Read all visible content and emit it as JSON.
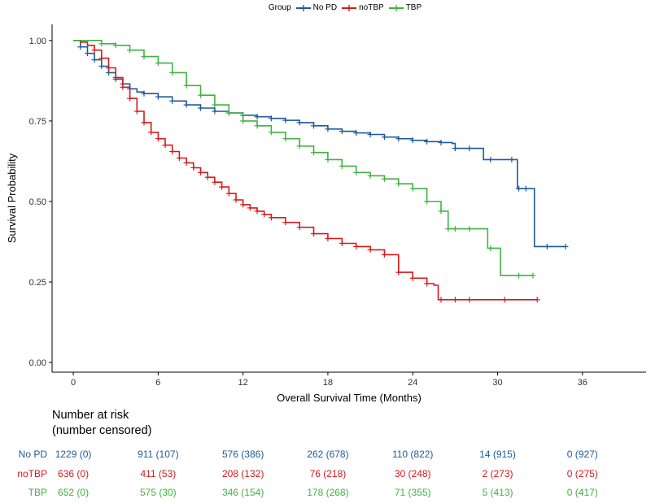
{
  "legend": {
    "title": "Group",
    "items": [
      {
        "label": "No PD",
        "color": "#1d5a9c"
      },
      {
        "label": "noTBP",
        "color": "#d7191c"
      },
      {
        "label": "TBP",
        "color": "#3fb33f"
      }
    ]
  },
  "risk_table": {
    "title_line1": "Number at risk",
    "title_line2": "(number censored)",
    "rows": [
      {
        "group": "No PD",
        "color": "#1d5a9c",
        "cells": [
          "1229 (0)",
          "911 (107)",
          "576 (386)",
          "262 (678)",
          "110 (822)",
          "14 (915)",
          "0 (927)"
        ]
      },
      {
        "group": "noTBP",
        "color": "#d7191c",
        "cells": [
          "636 (0)",
          "411 (53)",
          "208 (132)",
          "76 (218)",
          "30 (248)",
          "2 (273)",
          "0 (275)"
        ]
      },
      {
        "group": "TBP",
        "color": "#3fb33f",
        "cells": [
          "652 (0)",
          "575 (30)",
          "346 (154)",
          "178 (268)",
          "71 (355)",
          "5 (413)",
          "0 (417)"
        ]
      }
    ]
  },
  "chart_data": {
    "type": "line",
    "title": "",
    "xlabel": "Overall Survival Time (Months)",
    "ylabel": "Survival Probability",
    "xlim": [
      -1.5,
      40.5
    ],
    "ylim": [
      -0.03,
      1.05
    ],
    "xticks": [
      0,
      6,
      12,
      18,
      24,
      30,
      36
    ],
    "xtick_labels": [
      "0",
      "6",
      "12",
      "18",
      "24",
      "30",
      "36"
    ],
    "yticks": [
      0,
      0.25,
      0.5,
      0.75,
      1.0
    ],
    "ytick_labels": [
      "0.00",
      "0.25",
      "0.50",
      "0.75",
      "1.00"
    ],
    "grid": false,
    "series": [
      {
        "name": "No PD",
        "color": "#1d5a9c",
        "points": [
          [
            0,
            1.0
          ],
          [
            0.5,
            0.98
          ],
          [
            1,
            0.96
          ],
          [
            1.5,
            0.94
          ],
          [
            2,
            0.92
          ],
          [
            2.5,
            0.9
          ],
          [
            3,
            0.88
          ],
          [
            3.5,
            0.865
          ],
          [
            4,
            0.85
          ],
          [
            4.5,
            0.84
          ],
          [
            5,
            0.835
          ],
          [
            6,
            0.825
          ],
          [
            7,
            0.812
          ],
          [
            8,
            0.8
          ],
          [
            9,
            0.79
          ],
          [
            10,
            0.78
          ],
          [
            11,
            0.775
          ],
          [
            12,
            0.768
          ],
          [
            13,
            0.763
          ],
          [
            14,
            0.758
          ],
          [
            15,
            0.752
          ],
          [
            16,
            0.745
          ],
          [
            17,
            0.735
          ],
          [
            18,
            0.725
          ],
          [
            19,
            0.718
          ],
          [
            20,
            0.713
          ],
          [
            21,
            0.708
          ],
          [
            22,
            0.7
          ],
          [
            23,
            0.695
          ],
          [
            24,
            0.69
          ],
          [
            25,
            0.686
          ],
          [
            26,
            0.683
          ],
          [
            26.8,
            0.68
          ],
          [
            27,
            0.665
          ],
          [
            28,
            0.665
          ],
          [
            28.7,
            0.665
          ],
          [
            29,
            0.63
          ],
          [
            30,
            0.63
          ],
          [
            31,
            0.63
          ],
          [
            31.3,
            0.63
          ],
          [
            31.4,
            0.54
          ],
          [
            32,
            0.54
          ],
          [
            32.5,
            0.54
          ],
          [
            32.6,
            0.36
          ],
          [
            33.5,
            0.36
          ],
          [
            34.8,
            0.36
          ]
        ],
        "censor_x": [
          0.5,
          1,
          1.5,
          2,
          2.5,
          3,
          3.5,
          4,
          5,
          6,
          7,
          8,
          9,
          10,
          11,
          12,
          13,
          14,
          15,
          16,
          17,
          18,
          19,
          20,
          21,
          22,
          23,
          24,
          25,
          26,
          27,
          28,
          29.5,
          31,
          31.5,
          32,
          33.5,
          34.8
        ]
      },
      {
        "name": "noTBP",
        "color": "#d7191c",
        "points": [
          [
            0,
            1.0
          ],
          [
            0.5,
            0.995
          ],
          [
            1,
            0.985
          ],
          [
            1.5,
            0.97
          ],
          [
            2,
            0.945
          ],
          [
            2.5,
            0.915
          ],
          [
            3,
            0.885
          ],
          [
            3.5,
            0.855
          ],
          [
            4,
            0.82
          ],
          [
            4.5,
            0.78
          ],
          [
            5,
            0.745
          ],
          [
            5.5,
            0.715
          ],
          [
            6,
            0.695
          ],
          [
            6.5,
            0.675
          ],
          [
            7,
            0.655
          ],
          [
            7.5,
            0.635
          ],
          [
            8,
            0.62
          ],
          [
            8.5,
            0.605
          ],
          [
            9,
            0.59
          ],
          [
            9.5,
            0.575
          ],
          [
            10,
            0.56
          ],
          [
            10.5,
            0.545
          ],
          [
            11,
            0.525
          ],
          [
            11.5,
            0.505
          ],
          [
            12,
            0.49
          ],
          [
            12.5,
            0.48
          ],
          [
            13,
            0.47
          ],
          [
            13.5,
            0.46
          ],
          [
            14,
            0.45
          ],
          [
            15,
            0.435
          ],
          [
            16,
            0.42
          ],
          [
            17,
            0.4
          ],
          [
            18,
            0.385
          ],
          [
            19,
            0.37
          ],
          [
            20,
            0.36
          ],
          [
            21,
            0.35
          ],
          [
            22,
            0.335
          ],
          [
            23,
            0.28
          ],
          [
            24,
            0.262
          ],
          [
            25,
            0.245
          ],
          [
            25.5,
            0.24
          ],
          [
            25.8,
            0.195
          ],
          [
            27,
            0.195
          ],
          [
            30,
            0.195
          ],
          [
            32.8,
            0.195
          ]
        ],
        "censor_x": [
          1.5,
          2,
          2.5,
          3,
          3.5,
          4,
          4.5,
          5,
          5.5,
          6,
          6.5,
          7,
          7.5,
          8,
          8.5,
          9,
          9.5,
          10,
          10.5,
          11,
          11.5,
          12,
          12.5,
          13,
          13.5,
          14,
          15,
          16,
          17,
          18,
          19,
          20,
          21,
          22,
          23,
          24,
          25,
          26,
          27,
          28,
          30.5,
          32.8
        ]
      },
      {
        "name": "TBP",
        "color": "#3fb33f",
        "points": [
          [
            0,
            1.0
          ],
          [
            1,
            1.0
          ],
          [
            2,
            0.99
          ],
          [
            3,
            0.985
          ],
          [
            4,
            0.97
          ],
          [
            5,
            0.95
          ],
          [
            6,
            0.93
          ],
          [
            7,
            0.9
          ],
          [
            8,
            0.86
          ],
          [
            9,
            0.83
          ],
          [
            10,
            0.8
          ],
          [
            11,
            0.775
          ],
          [
            12,
            0.75
          ],
          [
            13,
            0.735
          ],
          [
            14,
            0.715
          ],
          [
            15,
            0.695
          ],
          [
            16,
            0.672
          ],
          [
            17,
            0.652
          ],
          [
            18,
            0.63
          ],
          [
            19,
            0.61
          ],
          [
            20,
            0.59
          ],
          [
            21,
            0.58
          ],
          [
            22,
            0.57
          ],
          [
            23,
            0.555
          ],
          [
            24,
            0.54
          ],
          [
            25,
            0.5
          ],
          [
            26,
            0.47
          ],
          [
            26.5,
            0.415
          ],
          [
            28,
            0.415
          ],
          [
            29,
            0.415
          ],
          [
            29.3,
            0.355
          ],
          [
            30,
            0.355
          ],
          [
            30.2,
            0.27
          ],
          [
            31,
            0.27
          ],
          [
            32.5,
            0.27
          ]
        ],
        "censor_x": [
          2,
          3,
          4,
          5,
          6,
          7,
          8,
          9,
          10,
          11,
          12,
          13,
          14,
          15,
          16,
          17,
          18,
          19,
          20,
          21,
          22,
          23,
          24,
          25,
          26,
          26.5,
          27,
          28,
          29.5,
          31.5,
          32.5
        ]
      }
    ]
  }
}
